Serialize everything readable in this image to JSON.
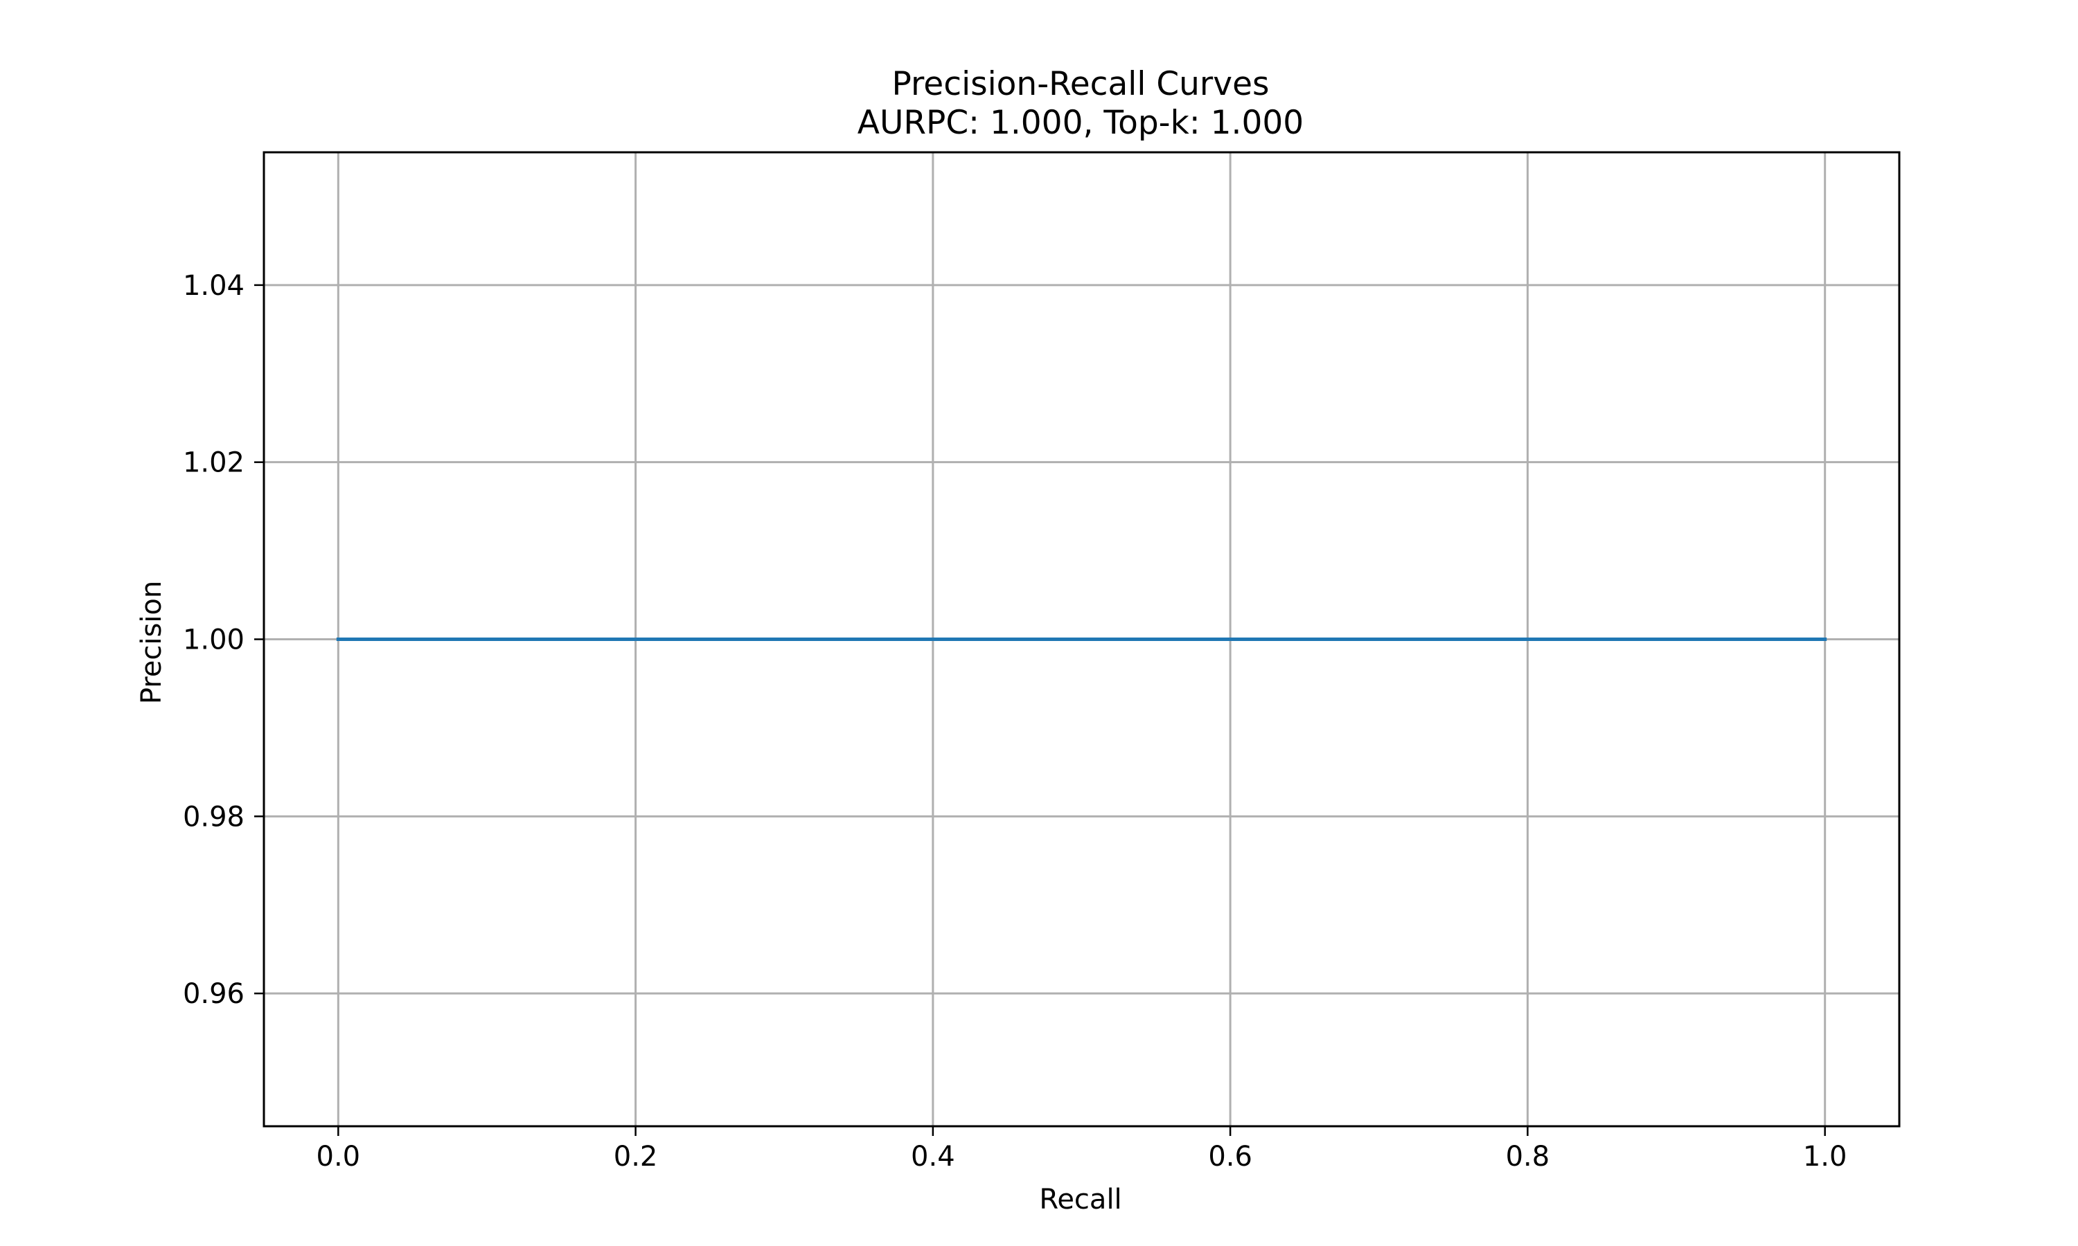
{
  "chart_data": {
    "type": "line",
    "title": "Precision-Recall Curves",
    "subtitle": "AURPC: 1.000, Top-k: 1.000",
    "xlabel": "Recall",
    "ylabel": "Precision",
    "xlim": [
      -0.05,
      1.05
    ],
    "ylim": [
      0.945,
      1.055
    ],
    "xticks": [
      0.0,
      0.2,
      0.4,
      0.6,
      0.8,
      1.0
    ],
    "xtick_labels": [
      "0.0",
      "0.2",
      "0.4",
      "0.6",
      "0.8",
      "1.0"
    ],
    "yticks": [
      0.96,
      0.98,
      1.0,
      1.02,
      1.04
    ],
    "ytick_labels": [
      "0.96",
      "0.98",
      "1.00",
      "1.02",
      "1.04"
    ],
    "grid": true,
    "series": [
      {
        "color": "#1f77b4",
        "x": [
          0.0,
          1.0
        ],
        "y": [
          1.0,
          1.0
        ]
      }
    ]
  }
}
